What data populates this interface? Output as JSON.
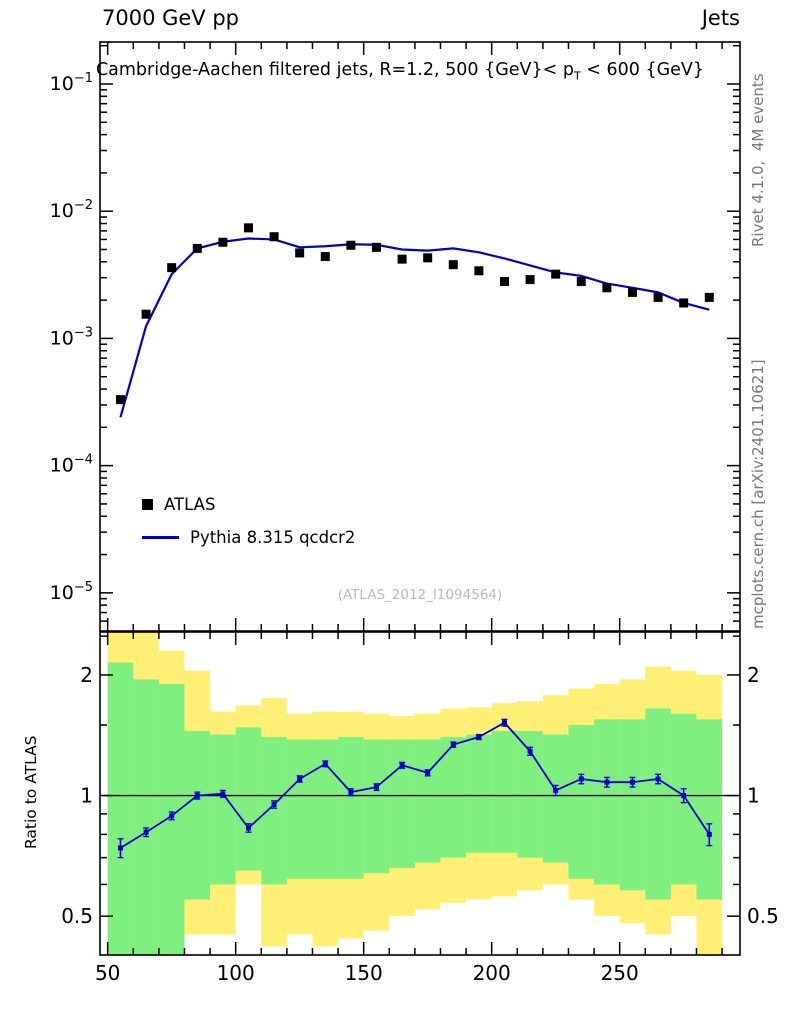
{
  "header": {
    "left": "7000 GeV pp",
    "right": "Jets"
  },
  "plot_title": {
    "pre": "Cambridge-Aachen filtered jets, R=1.2, 500 {GeV}< p",
    "sub": "T",
    "post": " < 600 {GeV}"
  },
  "watermark": "(ATLAS_2012_I1094564)",
  "side_notes": {
    "top_right": "Rivet 4.1.0,  4M events",
    "bottom_right": "mcplots.cern.ch [arXiv:2401.10621]"
  },
  "legend": {
    "items": [
      {
        "label": "ATLAS",
        "marker": "black-square",
        "color": "#000000"
      },
      {
        "label": "Pythia 8.315 qcdcr2",
        "marker": "blue-line",
        "color": "#0000cc"
      }
    ]
  },
  "colors": {
    "mc_line": "#0000cc",
    "data_marker": "#000000",
    "band_outer": "#fff075",
    "band_inner": "#7ff07f",
    "frame": "#000000",
    "side_note": "#777777",
    "watermark": "#bbbbbb"
  },
  "chart_data": [
    {
      "id": "main",
      "type": "line+scatter",
      "title": "Cambridge-Aachen filtered jets, R=1.2, 500 {GeV}< pT < 600 {GeV}",
      "xlim": [
        47,
        297
      ],
      "ylim_log10": [
        -5.3,
        -0.67
      ],
      "x_ticks": [
        50,
        100,
        150,
        200,
        250
      ],
      "x_minor_step": 10,
      "y_tick_exponents": [
        -1,
        -2,
        -3,
        -4,
        -5
      ],
      "x": [
        55,
        65,
        75,
        85,
        95,
        105,
        115,
        125,
        135,
        145,
        155,
        165,
        175,
        185,
        195,
        205,
        215,
        225,
        235,
        245,
        255,
        265,
        275,
        285
      ],
      "series": [
        {
          "name": "ATLAS",
          "style": "scatter-square",
          "color": "#000000",
          "values": [
            0.00033,
            0.00155,
            0.0036,
            0.0051,
            0.0057,
            0.0074,
            0.0063,
            0.0047,
            0.0044,
            0.0054,
            0.0052,
            0.0042,
            0.0043,
            0.0038,
            0.0034,
            0.0028,
            0.0029,
            0.0032,
            0.0028,
            0.0025,
            0.0023,
            0.0021,
            0.0019,
            0.0021
          ]
        },
        {
          "name": "Pythia 8.315 qcdcr2",
          "style": "line",
          "color": "#0000cc",
          "values": [
            0.00024,
            0.00125,
            0.0032,
            0.0051,
            0.00575,
            0.0061,
            0.006,
            0.0052,
            0.0053,
            0.0055,
            0.00545,
            0.005,
            0.0049,
            0.0051,
            0.00475,
            0.00425,
            0.00375,
            0.0033,
            0.0031,
            0.0027,
            0.0025,
            0.0023,
            0.0019,
            0.00168
          ]
        }
      ]
    },
    {
      "id": "ratio",
      "type": "ratio",
      "ylabel": "Ratio to ATLAS",
      "scale": "log",
      "ylim": [
        0.4,
        2.56
      ],
      "y_ticks": [
        2,
        1,
        0.5
      ],
      "y_minor_ticks": [
        0.6,
        0.7,
        0.8,
        0.9,
        1.5,
        2.5
      ],
      "reference_line": 1,
      "x": [
        55,
        65,
        75,
        85,
        95,
        105,
        115,
        125,
        135,
        145,
        155,
        165,
        175,
        185,
        195,
        205,
        215,
        225,
        235,
        245,
        255,
        265,
        275,
        285
      ],
      "values": [
        0.74,
        0.81,
        0.89,
        1.0,
        1.01,
        0.83,
        0.95,
        1.1,
        1.2,
        1.02,
        1.05,
        1.19,
        1.14,
        1.34,
        1.4,
        1.52,
        1.29,
        1.03,
        1.1,
        1.08,
        1.08,
        1.1,
        1.0,
        0.8
      ],
      "stat_error": [
        0.04,
        0.02,
        0.02,
        0.02,
        0.02,
        0.02,
        0.02,
        0.02,
        0.02,
        0.02,
        0.02,
        0.02,
        0.02,
        0.02,
        0.02,
        0.03,
        0.03,
        0.03,
        0.03,
        0.03,
        0.03,
        0.03,
        0.04,
        0.05
      ],
      "bands": [
        {
          "x0": 50,
          "x1": 60,
          "outer": [
            0.4,
            2.56
          ],
          "inner": [
            0.4,
            2.15
          ]
        },
        {
          "x0": 60,
          "x1": 70,
          "outer": [
            0.4,
            2.56
          ],
          "inner": [
            0.4,
            1.95
          ]
        },
        {
          "x0": 70,
          "x1": 80,
          "outer": [
            0.4,
            2.3
          ],
          "inner": [
            0.4,
            1.9
          ]
        },
        {
          "x0": 80,
          "x1": 90,
          "outer": [
            0.45,
            2.05
          ],
          "inner": [
            0.55,
            1.45
          ]
        },
        {
          "x0": 90,
          "x1": 100,
          "outer": [
            0.45,
            1.62
          ],
          "inner": [
            0.6,
            1.42
          ]
        },
        {
          "x0": 100,
          "x1": 110,
          "outer": [
            0.6,
            1.68
          ],
          "inner": [
            0.65,
            1.48
          ]
        },
        {
          "x0": 110,
          "x1": 120,
          "outer": [
            0.42,
            1.75
          ],
          "inner": [
            0.6,
            1.4
          ]
        },
        {
          "x0": 120,
          "x1": 130,
          "outer": [
            0.45,
            1.6
          ],
          "inner": [
            0.62,
            1.38
          ]
        },
        {
          "x0": 130,
          "x1": 140,
          "outer": [
            0.42,
            1.62
          ],
          "inner": [
            0.62,
            1.38
          ]
        },
        {
          "x0": 140,
          "x1": 150,
          "outer": [
            0.44,
            1.62
          ],
          "inner": [
            0.62,
            1.4
          ]
        },
        {
          "x0": 150,
          "x1": 160,
          "outer": [
            0.46,
            1.6
          ],
          "inner": [
            0.64,
            1.38
          ]
        },
        {
          "x0": 160,
          "x1": 170,
          "outer": [
            0.5,
            1.58
          ],
          "inner": [
            0.66,
            1.38
          ]
        },
        {
          "x0": 170,
          "x1": 180,
          "outer": [
            0.52,
            1.6
          ],
          "inner": [
            0.68,
            1.38
          ]
        },
        {
          "x0": 180,
          "x1": 190,
          "outer": [
            0.54,
            1.65
          ],
          "inner": [
            0.7,
            1.4
          ]
        },
        {
          "x0": 190,
          "x1": 200,
          "outer": [
            0.55,
            1.66
          ],
          "inner": [
            0.72,
            1.42
          ]
        },
        {
          "x0": 200,
          "x1": 210,
          "outer": [
            0.56,
            1.7
          ],
          "inner": [
            0.72,
            1.45
          ]
        },
        {
          "x0": 210,
          "x1": 220,
          "outer": [
            0.58,
            1.72
          ],
          "inner": [
            0.7,
            1.45
          ]
        },
        {
          "x0": 220,
          "x1": 230,
          "outer": [
            0.6,
            1.78
          ],
          "inner": [
            0.68,
            1.42
          ]
        },
        {
          "x0": 230,
          "x1": 240,
          "outer": [
            0.55,
            1.85
          ],
          "inner": [
            0.62,
            1.5
          ]
        },
        {
          "x0": 240,
          "x1": 250,
          "outer": [
            0.5,
            1.9
          ],
          "inner": [
            0.6,
            1.55
          ]
        },
        {
          "x0": 250,
          "x1": 260,
          "outer": [
            0.48,
            1.95
          ],
          "inner": [
            0.58,
            1.55
          ]
        },
        {
          "x0": 260,
          "x1": 270,
          "outer": [
            0.45,
            2.1
          ],
          "inner": [
            0.55,
            1.65
          ]
        },
        {
          "x0": 270,
          "x1": 280,
          "outer": [
            0.5,
            2.05
          ],
          "inner": [
            0.6,
            1.6
          ]
        },
        {
          "x0": 280,
          "x1": 290,
          "outer": [
            0.4,
            2.0
          ],
          "inner": [
            0.55,
            1.55
          ]
        }
      ]
    }
  ]
}
